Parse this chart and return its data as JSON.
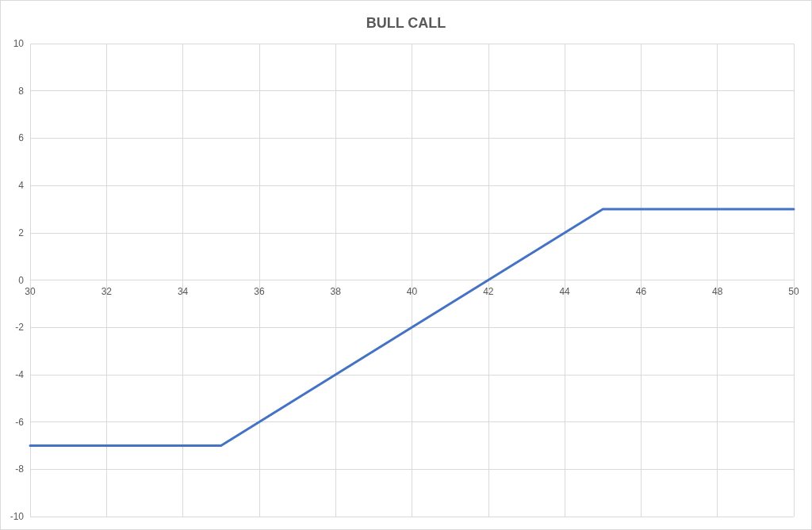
{
  "chart_data": {
    "type": "line",
    "title": "BULL CALL",
    "x": [
      30,
      35,
      45,
      50
    ],
    "series": [
      {
        "color": "#4472c4",
        "values": [
          -7,
          -7,
          3,
          3
        ]
      }
    ],
    "xlim": [
      30,
      50
    ],
    "xticks": [
      30,
      32,
      34,
      36,
      38,
      40,
      42,
      44,
      46,
      48,
      50
    ],
    "ylim": [
      -10,
      10
    ],
    "yticks": [
      -10,
      -8,
      -6,
      -4,
      -2,
      0,
      2,
      4,
      6,
      8,
      10
    ],
    "grid": true,
    "marker": "none",
    "line_style": "solid"
  }
}
